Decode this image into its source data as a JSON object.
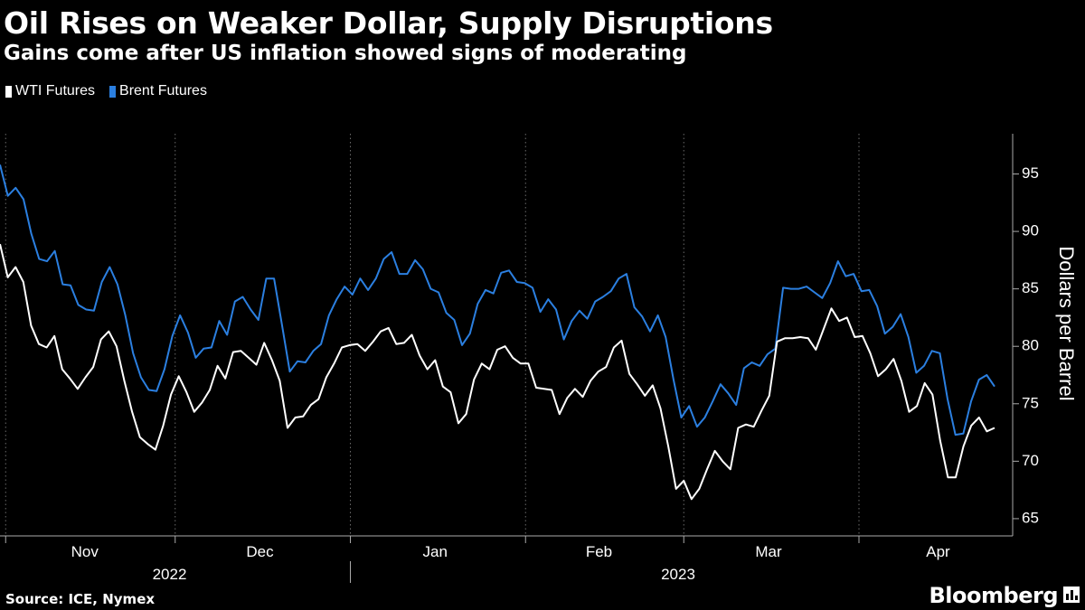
{
  "header": {
    "title": "Oil Rises on Weaker Dollar, Supply Disruptions",
    "subtitle": "Gains come after US inflation showed signs of moderating"
  },
  "footer": {
    "source": "Source: ICE, Nymex",
    "brand": "Bloomberg"
  },
  "colors": {
    "background": "#000000",
    "wti": "#ffffff",
    "brent": "#2b7fe0",
    "grid": "#6b6b6b"
  },
  "chart_data": {
    "type": "line",
    "title": "Oil Rises on Weaker Dollar, Supply Disruptions",
    "subtitle": "Gains come after US inflation showed signs of moderating",
    "xlabel": "",
    "ylabel": "Dollars per Barrel",
    "ylim": [
      63.5,
      98.5
    ],
    "yticks": [
      65,
      70,
      75,
      80,
      85,
      90,
      95
    ],
    "y_axis_side": "right",
    "grid": "vertical dotted at month boundaries",
    "legend": "top-left",
    "x_start": "2022-10-31",
    "x_end": "2023-04-25",
    "month_boundaries": [
      "2022-11-01",
      "2022-12-01",
      "2023-01-01",
      "2023-02-01",
      "2023-03-01",
      "2023-04-01",
      "2023-05-01"
    ],
    "month_labels": [
      {
        "label": "Nov",
        "date": "2022-11-15"
      },
      {
        "label": "Dec",
        "date": "2022-12-16"
      },
      {
        "label": "Jan",
        "date": "2023-01-16"
      },
      {
        "label": "Feb",
        "date": "2023-02-14"
      },
      {
        "label": "Mar",
        "date": "2023-03-16"
      },
      {
        "label": "Apr",
        "date": "2023-04-15"
      }
    ],
    "year_labels": [
      {
        "label": "2022",
        "date": "2022-11-30"
      },
      {
        "label": "2023",
        "date": "2023-02-28"
      }
    ],
    "year_divider": "2023-01-01",
    "series": [
      {
        "name": "WTI Futures",
        "values": [
          88.9,
          86.0,
          86.9,
          85.6,
          81.8,
          80.2,
          79.9,
          80.9,
          78.0,
          77.2,
          76.3,
          77.3,
          78.2,
          80.6,
          81.3,
          80.0,
          77.0,
          74.3,
          72.1,
          71.5,
          71.0,
          73.1,
          75.8,
          77.4,
          76.0,
          74.3,
          75.1,
          76.2,
          78.3,
          77.2,
          79.5,
          79.6,
          79.0,
          78.4,
          80.3,
          78.8,
          77.0,
          72.9,
          73.8,
          73.9,
          74.9,
          75.4,
          77.3,
          78.5,
          79.9,
          80.1,
          80.2,
          79.6,
          80.4,
          81.3,
          81.6,
          80.2,
          80.3,
          81.0,
          79.2,
          78.0,
          78.8,
          76.5,
          76.0,
          73.3,
          74.1,
          77.1,
          78.5,
          78.0,
          79.7,
          80.0,
          79.0,
          78.5,
          78.5,
          76.4,
          76.3,
          76.2,
          74.1,
          75.5,
          76.3,
          75.6,
          77.0,
          77.8,
          78.2,
          79.9,
          80.5,
          77.6,
          76.7,
          75.7,
          76.6,
          74.6,
          71.3,
          67.6,
          68.3,
          66.7,
          67.6,
          69.3,
          70.9,
          70.0,
          69.3,
          72.9,
          73.2,
          73.0,
          74.4,
          75.7,
          80.4,
          80.7,
          80.7,
          80.8,
          80.7,
          79.7,
          81.5,
          83.3,
          82.2,
          82.5,
          80.8,
          80.9,
          79.4,
          77.4,
          78.0,
          78.9,
          77.0,
          74.3,
          74.8,
          76.8,
          75.8,
          71.8,
          68.6,
          68.6,
          71.3,
          73.1,
          73.8,
          72.6,
          72.9
        ]
      },
      {
        "name": "Brent Futures",
        "values": [
          95.8,
          93.1,
          93.8,
          92.8,
          89.8,
          87.6,
          87.4,
          88.3,
          85.4,
          85.3,
          83.6,
          83.2,
          83.1,
          85.6,
          86.9,
          85.4,
          82.7,
          79.4,
          77.3,
          76.2,
          76.1,
          78.0,
          80.9,
          82.7,
          81.2,
          79.0,
          79.8,
          79.9,
          82.2,
          81.0,
          83.9,
          84.3,
          83.2,
          82.3,
          85.9,
          85.9,
          81.9,
          77.8,
          78.7,
          78.6,
          79.6,
          80.2,
          82.7,
          84.1,
          85.2,
          84.5,
          85.9,
          84.9,
          85.9,
          87.6,
          88.2,
          86.3,
          86.3,
          87.5,
          86.7,
          85.0,
          84.7,
          82.9,
          82.3,
          80.1,
          81.1,
          83.7,
          84.9,
          84.6,
          86.4,
          86.6,
          85.6,
          85.5,
          85.1,
          83.0,
          84.1,
          83.2,
          80.6,
          82.2,
          83.1,
          82.4,
          83.9,
          84.3,
          84.8,
          85.9,
          86.3,
          83.4,
          82.6,
          81.3,
          82.7,
          80.8,
          77.1,
          73.8,
          74.8,
          73.0,
          73.8,
          75.2,
          76.7,
          75.9,
          74.9,
          78.1,
          78.6,
          78.3,
          79.3,
          79.8,
          85.1,
          85.0,
          85.0,
          85.2,
          84.7,
          84.2,
          85.5,
          87.4,
          86.1,
          86.3,
          84.8,
          84.9,
          83.5,
          81.1,
          81.7,
          82.8,
          80.8,
          77.7,
          78.3,
          79.6,
          79.4,
          75.4,
          72.3,
          72.4,
          75.2,
          77.1,
          77.5,
          76.5
        ]
      }
    ]
  }
}
